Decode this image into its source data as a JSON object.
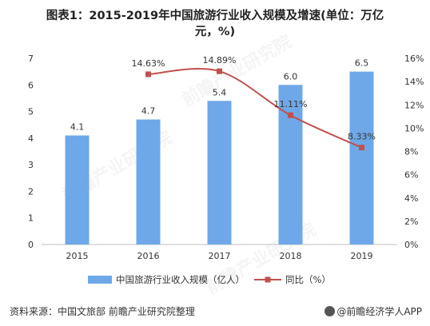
{
  "title_line1": "图表1：2015-2019年中国旅游行业收入规模及增速(单位：万亿",
  "title_line2": "元，%)",
  "source": "资料来源：中国文旅部 前瞻产业研究院整理",
  "brand": "@前瞻经济学人APP",
  "watermark": "前瞻产业研究院",
  "colors": {
    "bar": "#6FA8E8",
    "line": "#C0504D",
    "axis": "#bfbfbf"
  },
  "chart_data": {
    "type": "bar",
    "categories": [
      "2015",
      "2016",
      "2017",
      "2018",
      "2019"
    ],
    "series": [
      {
        "name": "中国旅游行业收入规模（亿人）",
        "type": "bar",
        "axis": "left",
        "values": [
          4.1,
          4.7,
          5.4,
          6.0,
          6.5
        ],
        "labels": [
          "4.1",
          "4.7",
          "5.4",
          "6.0",
          "6.5"
        ]
      },
      {
        "name": "同比（%）",
        "type": "line",
        "axis": "right",
        "values": [
          null,
          14.63,
          14.89,
          11.11,
          8.33
        ],
        "labels": [
          "",
          "14.63%",
          "14.89%",
          "11.11%",
          "8.33%"
        ]
      }
    ],
    "ylim_left": [
      0,
      7
    ],
    "yticks_left": [
      "0",
      "1",
      "2",
      "3",
      "4",
      "5",
      "6",
      "7"
    ],
    "ylim_right": [
      0,
      16
    ],
    "yticks_right": [
      "0%",
      "2%",
      "4%",
      "6%",
      "8%",
      "10%",
      "12%",
      "14%",
      "16%"
    ],
    "grid": false,
    "legend": "bottom"
  }
}
